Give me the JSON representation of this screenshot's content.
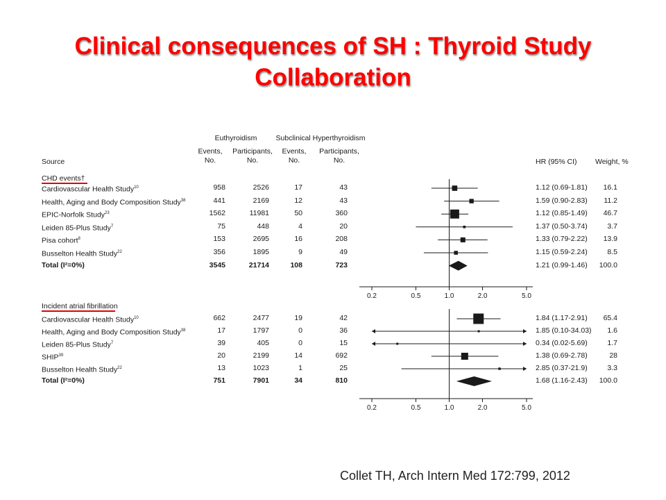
{
  "title": {
    "line1": "Clinical consequences of SH : Thyroid Study",
    "line2": "Collaboration"
  },
  "citation": "Collet TH, Arch Intern Med 172:799, 2012",
  "colors": {
    "title": "#ff0000",
    "underline": "#e00000",
    "marker": "#1a1a1a"
  },
  "table_headers": {
    "group1": "Euthyroidism",
    "group2": "Subclinical Hyperthyroidism",
    "source": "Source",
    "events_1": "Events,",
    "events_2": "No.",
    "participants_1": "Participants,",
    "participants_2": "No.",
    "hr": "HR (95% CI)",
    "weight": "Weight, %"
  },
  "chart_data": [
    {
      "type": "forest",
      "section": "CHD events†",
      "x_scale": "log",
      "xlim": [
        0.2,
        5.0
      ],
      "xticks": [
        "0.2",
        "0.5",
        "1.0",
        "2.0",
        "5.0"
      ],
      "reference_line": 1.0,
      "rows": [
        {
          "source": "Cardiovascular Health Study",
          "ref": "10",
          "eu_events": "958",
          "eu_participants": "2526",
          "sh_events": "17",
          "sh_participants": "43",
          "hr": 1.12,
          "lo": 0.69,
          "hi": 1.81,
          "hr_text": "1.12 (0.69-1.81)",
          "weight": 16.1
        },
        {
          "source": "Health, Aging and Body Composition Study",
          "ref": "38",
          "eu_events": "441",
          "eu_participants": "2169",
          "sh_events": "12",
          "sh_participants": "43",
          "hr": 1.59,
          "lo": 0.9,
          "hi": 2.83,
          "hr_text": "1.59 (0.90-2.83)",
          "weight": 11.2
        },
        {
          "source": "EPIC-Norfolk Study",
          "ref": "23",
          "eu_events": "1562",
          "eu_participants": "11981",
          "sh_events": "50",
          "sh_participants": "360",
          "hr": 1.12,
          "lo": 0.85,
          "hi": 1.49,
          "hr_text": "1.12 (0.85-1.49)",
          "weight": 46.7
        },
        {
          "source": "Leiden 85-Plus Study",
          "ref": "7",
          "eu_events": "75",
          "eu_participants": "448",
          "sh_events": "4",
          "sh_participants": "20",
          "hr": 1.37,
          "lo": 0.5,
          "hi": 3.74,
          "hr_text": "1.37 (0.50-3.74)",
          "weight": 3.7
        },
        {
          "source": "Pisa cohort",
          "ref": "8",
          "eu_events": "153",
          "eu_participants": "2695",
          "sh_events": "16",
          "sh_participants": "208",
          "hr": 1.33,
          "lo": 0.79,
          "hi": 2.22,
          "hr_text": "1.33 (0.79-2.22)",
          "weight": 13.9
        },
        {
          "source": "Busselton Health Study",
          "ref": "22",
          "eu_events": "356",
          "eu_participants": "1895",
          "sh_events": "9",
          "sh_participants": "49",
          "hr": 1.15,
          "lo": 0.59,
          "hi": 2.24,
          "hr_text": "1.15 (0.59-2.24)",
          "weight": 8.5
        }
      ],
      "total": {
        "label": "Total (I²=0%)",
        "eu_events": "3545",
        "eu_participants": "21714",
        "sh_events": "108",
        "sh_participants": "723",
        "hr": 1.21,
        "lo": 0.99,
        "hi": 1.46,
        "hr_text": "1.21 (0.99-1.46)",
        "weight": "100.0"
      }
    },
    {
      "type": "forest",
      "section": "Incident atrial fibrillation",
      "x_scale": "log",
      "xlim": [
        0.2,
        5.0
      ],
      "xticks": [
        "0.2",
        "0.5",
        "1.0",
        "2.0",
        "5.0"
      ],
      "reference_line": 1.0,
      "rows": [
        {
          "source": "Cardiovascular Health Study",
          "ref": "10",
          "eu_events": "662",
          "eu_participants": "2477",
          "sh_events": "19",
          "sh_participants": "42",
          "hr": 1.84,
          "lo": 1.17,
          "hi": 2.91,
          "hr_text": "1.84 (1.17-2.91)",
          "weight": 65.4
        },
        {
          "source": "Health, Aging and Body Composition Study",
          "ref": "38",
          "eu_events": "17",
          "eu_participants": "1797",
          "sh_events": "0",
          "sh_participants": "36",
          "hr": 1.85,
          "lo": 0.1,
          "hi": 34.03,
          "hr_text": "1.85 (0.10-34.03)",
          "weight": 1.6
        },
        {
          "source": "Leiden 85-Plus Study",
          "ref": "7",
          "eu_events": "39",
          "eu_participants": "405",
          "sh_events": "0",
          "sh_participants": "15",
          "hr": 0.34,
          "lo": 0.02,
          "hi": 5.69,
          "hr_text": "0.34 (0.02-5.69)",
          "weight": 1.7
        },
        {
          "source": "SHIP",
          "ref": "39",
          "eu_events": "20",
          "eu_participants": "2199",
          "sh_events": "14",
          "sh_participants": "692",
          "hr": 1.38,
          "lo": 0.69,
          "hi": 2.78,
          "hr_text": "1.38 (0.69-2.78)",
          "weight": 28.0
        },
        {
          "source": "Busselton Health Study",
          "ref": "22",
          "eu_events": "13",
          "eu_participants": "1023",
          "sh_events": "1",
          "sh_participants": "25",
          "hr": 2.85,
          "lo": 0.37,
          "hi": 21.9,
          "hr_text": "2.85 (0.37-21.9)",
          "weight": 3.3
        }
      ],
      "total": {
        "label": "Total (I²=0%)",
        "eu_events": "751",
        "eu_participants": "7901",
        "sh_events": "34",
        "sh_participants": "810",
        "hr": 1.68,
        "lo": 1.16,
        "hi": 2.43,
        "hr_text": "1.68 (1.16-2.43)",
        "weight": "100.0"
      }
    }
  ]
}
